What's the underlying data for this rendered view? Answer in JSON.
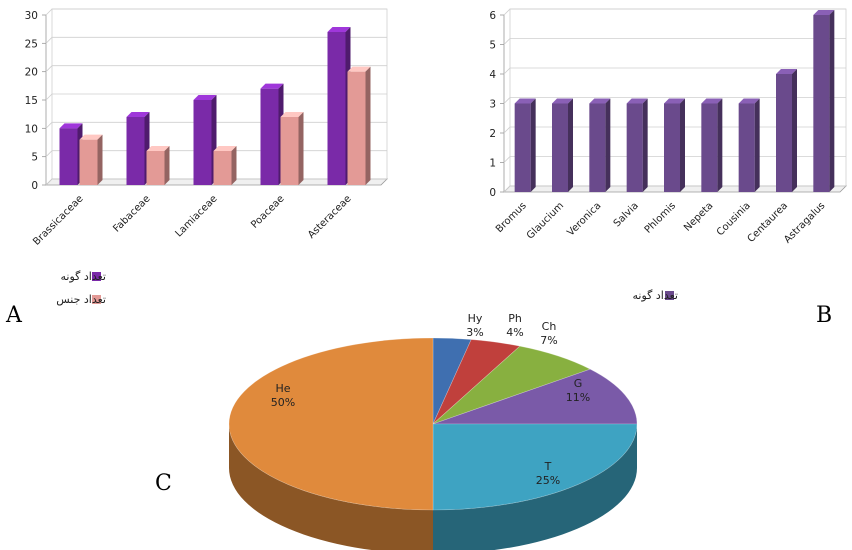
{
  "panels": {
    "a": "A",
    "b": "B",
    "c": "C"
  },
  "chart_data": [
    {
      "type": "bar",
      "categories": [
        "Brassicaceae",
        "Fabaceae",
        "Lamiaceae",
        "Poaceae",
        "Asteraceae"
      ],
      "series": [
        {
          "name": "تعداد گونه",
          "values": [
            10,
            12,
            15,
            17,
            27
          ],
          "color": "#7a2aa8"
        },
        {
          "name": "تعداد جنس",
          "values": [
            8,
            6,
            6,
            12,
            20
          ],
          "color": "#e39a96"
        }
      ],
      "yticks": [
        0,
        5,
        10,
        15,
        20,
        25,
        30
      ],
      "ylim": [
        0,
        30
      ],
      "grid": true,
      "legend": "bottom-left"
    },
    {
      "type": "bar",
      "categories": [
        "Bromus",
        "Glaucium",
        "Veronica",
        "Salvia",
        "Phlomis",
        "Nepeta",
        "Cousinia",
        "Centaurea",
        "Astragalus"
      ],
      "series": [
        {
          "name": "تعداد گونه",
          "values": [
            3,
            3,
            3,
            3,
            3,
            3,
            3,
            4,
            6
          ],
          "color": "#6a4a8c"
        }
      ],
      "yticks": [
        0,
        1,
        2,
        3,
        4,
        5,
        6
      ],
      "ylim": [
        0,
        6
      ],
      "grid": true,
      "legend": "bottom-right"
    },
    {
      "type": "pie",
      "slices": [
        {
          "label": "Hy",
          "pct": "3%",
          "value": 3,
          "color": "#3f6fb0"
        },
        {
          "label": "Ph",
          "pct": "4%",
          "value": 4,
          "color": "#c0403c"
        },
        {
          "label": "Ch",
          "pct": "7%",
          "value": 7,
          "color": "#88b040"
        },
        {
          "label": "G",
          "pct": "11%",
          "value": 11,
          "color": "#7a5aa8"
        },
        {
          "label": "T",
          "pct": "25%",
          "value": 25,
          "color": "#3ea3c2"
        },
        {
          "label": "He",
          "pct": "50%",
          "value": 50,
          "color": "#e08a3c"
        }
      ]
    }
  ]
}
